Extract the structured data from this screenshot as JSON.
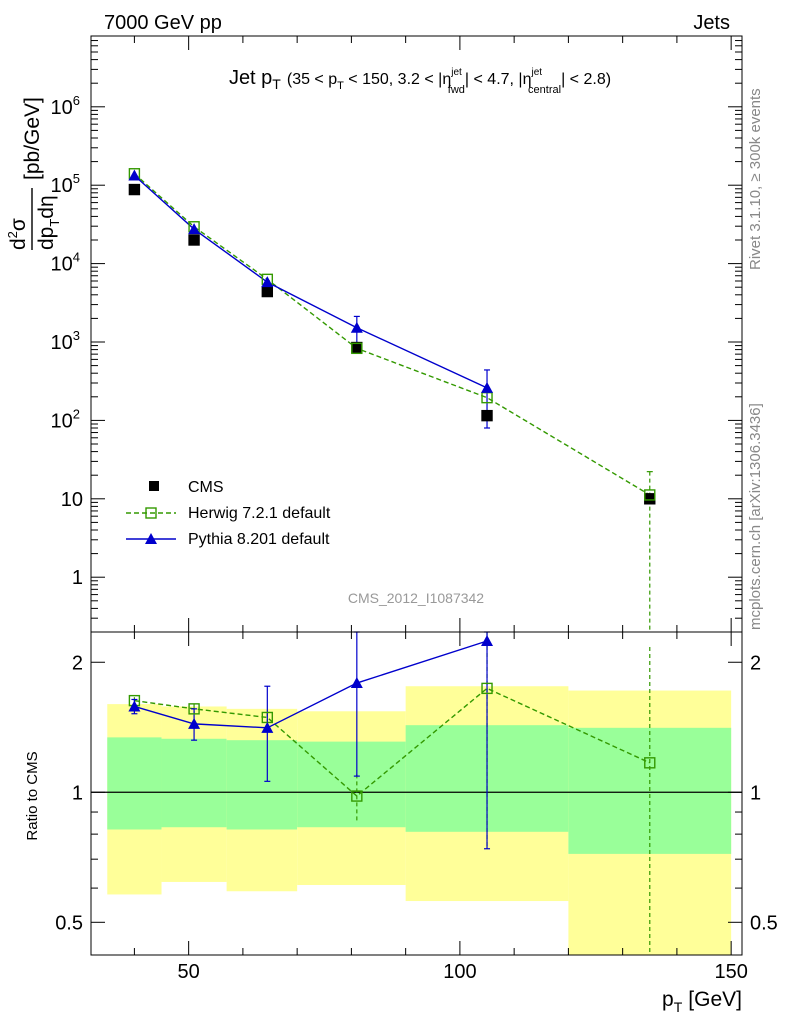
{
  "header": {
    "left": "7000 GeV pp",
    "right": "Jets"
  },
  "side_labels": {
    "top": "Rivet 3.1.10, ≥ 300k events",
    "bottom": "mcplots.cern.ch [arXiv:1306.3436]"
  },
  "watermark": "CMS_2012_I1087342",
  "colors": {
    "cms": "#000000",
    "herwig": "#339900",
    "pythia": "#0000cc",
    "band_outer": "#ffff99",
    "band_inner": "#99ff99"
  },
  "chart_data": [
    {
      "type": "scatter",
      "panel": "main",
      "title": "Jet p_T (35 < p_T < 150, 3.2 < |η^jet_fwd| < 4.7, |η^jet_central| < 2.8)",
      "title_parts": {
        "main": "Jet p",
        "main_sub": "T",
        "range": "(35 < p",
        "range_sub": "T",
        "range_rest": " < 150, 3.2 < |η",
        "fwd_sup": "jet",
        "fwd_sub": "fwd",
        "middle": "| < 4.7, |η",
        "central_sup": "jet",
        "central_sub": "central",
        "end": "| < 2.8)"
      },
      "ylabel": "d²σ/dp_T dη [pb/GeV]",
      "ylabel_parts": {
        "numerator": "d",
        "num_sup": "2",
        "sigma": "σ",
        "denominator": "dp",
        "den_sub": "T",
        "den_end": "dη",
        "unit": "[pb/GeV]"
      },
      "xlim": [
        32,
        152
      ],
      "ylim": [
        0.2,
        8000000
      ],
      "yscale": "log",
      "y_ticks": [
        {
          "value": 1,
          "label": "1"
        },
        {
          "value": 10,
          "label": "10"
        },
        {
          "value": 100,
          "base": "10",
          "exp": "2"
        },
        {
          "value": 1000,
          "base": "10",
          "exp": "3"
        },
        {
          "value": 10000,
          "base": "10",
          "exp": "4"
        },
        {
          "value": 100000,
          "base": "10",
          "exp": "5"
        },
        {
          "value": 1000000,
          "base": "10",
          "exp": "6"
        }
      ],
      "bin_edges": [
        35,
        45,
        57,
        70,
        90,
        120,
        150
      ],
      "series": [
        {
          "name": "CMS",
          "style": "data",
          "x": [
            40,
            51,
            64.5,
            81,
            105,
            135
          ],
          "y": [
            88000,
            20000,
            4400,
            850,
            115,
            10
          ],
          "yerr": [
            0,
            0,
            0,
            0,
            0,
            0
          ]
        },
        {
          "name": "Herwig 7.2.1 default",
          "style": "dashed-open-square",
          "x": [
            40,
            51,
            64.5,
            81,
            105,
            135
          ],
          "y": [
            140000,
            29500,
            6300,
            830,
            195,
            11.2
          ],
          "yerr": [
            0,
            0,
            0,
            0,
            0,
            11
          ]
        },
        {
          "name": "Pythia 8.201 default",
          "style": "solid-filled-triangle",
          "x": [
            40,
            51,
            64.5,
            81,
            105
          ],
          "y": [
            133000,
            27500,
            5800,
            1520,
            260
          ],
          "yerr": [
            0,
            0,
            0,
            600,
            180
          ]
        }
      ],
      "legend": {
        "position": "bottom-left"
      }
    },
    {
      "type": "scatter",
      "panel": "ratio",
      "xlabel": "p_T [GeV]",
      "xlabel_parts": {
        "p": "p",
        "sub": "T",
        "unit": "[GeV]"
      },
      "ylabel": "Ratio to CMS",
      "xlim": [
        32,
        152
      ],
      "ylim": [
        0.42,
        2.35
      ],
      "yscale": "log",
      "x_ticks": [
        50,
        100,
        150
      ],
      "y_ticks": [
        0.5,
        1,
        2
      ],
      "bands": {
        "edges": [
          35,
          45,
          57,
          70,
          90,
          120,
          150
        ],
        "outer_lo": [
          0.58,
          0.62,
          0.59,
          0.61,
          0.56,
          0.35,
          0.35
        ],
        "outer_hi": [
          1.6,
          1.58,
          1.56,
          1.54,
          1.76,
          1.72,
          1.72
        ],
        "inner_lo": [
          0.82,
          0.83,
          0.82,
          0.83,
          0.81,
          0.72,
          0.72
        ],
        "inner_hi": [
          1.34,
          1.33,
          1.32,
          1.31,
          1.43,
          1.41,
          1.41
        ]
      },
      "series": [
        {
          "name": "Herwig 7.2.1 default",
          "x": [
            40,
            51,
            64.5,
            81,
            105,
            135
          ],
          "y": [
            1.63,
            1.56,
            1.49,
            0.98,
            1.74,
            1.17
          ],
          "yerr": [
            0.03,
            0.04,
            0.04,
            0.12,
            1.0,
            1.0
          ]
        },
        {
          "name": "Pythia 8.201 default",
          "x": [
            40,
            51,
            64.5,
            81,
            105
          ],
          "y": [
            1.58,
            1.44,
            1.41,
            1.79,
            2.24
          ],
          "yerr": [
            0.06,
            0.12,
            0.35,
            0.7,
            1.5
          ]
        }
      ]
    }
  ]
}
